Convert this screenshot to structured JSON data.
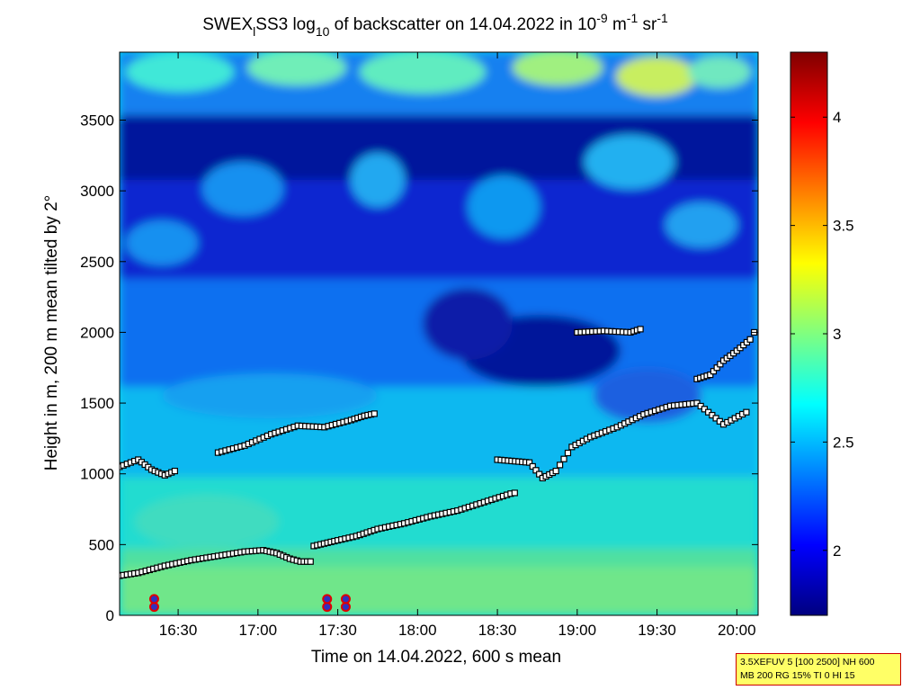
{
  "chart_data": {
    "type": "heatmap",
    "title": {
      "prefix": "SWEX",
      "sub_l": "l",
      "mid": "SS3 log",
      "sub_10": "10",
      "rest": " of backscatter on 14.04.2022 in 10",
      "sup_9": "-9",
      "unit_m": " m",
      "sup_1a": "-1",
      "unit_sr": " sr",
      "sup_1b": "-1"
    },
    "xlabel": "Time on 14.04.2022, 600 s mean",
    "ylabel": "Height in m, 200 m mean tilted by 2°",
    "x_ticks": [
      "16:30",
      "17:00",
      "17:30",
      "18:00",
      "18:30",
      "19:00",
      "19:30",
      "20:00"
    ],
    "x_tick_minutes": [
      990,
      1020,
      1050,
      1080,
      1110,
      1140,
      1170,
      1200
    ],
    "xlim_minutes": [
      968,
      1208
    ],
    "y_ticks": [
      0,
      500,
      1000,
      1500,
      2000,
      2500,
      3000,
      3500
    ],
    "ylim": [
      0,
      3980
    ],
    "colorbar": {
      "ticks": [
        "2",
        "2.5",
        "3",
        "3.5",
        "4"
      ],
      "tick_values": [
        2,
        2.5,
        3,
        3.5,
        4
      ],
      "range": [
        1.7,
        4.3
      ],
      "colormap": "jet"
    },
    "layers": [
      {
        "name": "lowest layer",
        "points": [
          [
            968,
            280
          ],
          [
            975,
            300
          ],
          [
            985,
            350
          ],
          [
            995,
            390
          ],
          [
            1005,
            420
          ],
          [
            1015,
            450
          ],
          [
            1022,
            460
          ],
          [
            1027,
            440
          ],
          [
            1032,
            400
          ],
          [
            1036,
            380
          ],
          [
            1041,
            380
          ]
        ]
      },
      {
        "name": "rising layer",
        "points": [
          [
            1041,
            490
          ],
          [
            1050,
            530
          ],
          [
            1057,
            560
          ],
          [
            1065,
            610
          ],
          [
            1075,
            650
          ],
          [
            1085,
            700
          ],
          [
            1095,
            740
          ],
          [
            1105,
            800
          ],
          [
            1115,
            860
          ],
          [
            1118,
            870
          ]
        ]
      },
      {
        "name": "mixing layer top",
        "points": [
          [
            968,
            1050
          ],
          [
            975,
            1100
          ],
          [
            980,
            1030
          ],
          [
            985,
            990
          ],
          [
            990,
            1030
          ]
        ]
      },
      {
        "name": "mixing layer top 2",
        "points": [
          [
            1005,
            1150
          ],
          [
            1015,
            1200
          ],
          [
            1025,
            1280
          ],
          [
            1035,
            1340
          ],
          [
            1045,
            1330
          ],
          [
            1055,
            1380
          ],
          [
            1060,
            1410
          ],
          [
            1065,
            1430
          ]
        ]
      },
      {
        "name": "elevated layer",
        "points": [
          [
            1110,
            1100
          ],
          [
            1122,
            1080
          ],
          [
            1127,
            970
          ],
          [
            1132,
            1020
          ],
          [
            1138,
            1190
          ],
          [
            1145,
            1260
          ],
          [
            1155,
            1330
          ],
          [
            1165,
            1420
          ],
          [
            1175,
            1480
          ],
          [
            1185,
            1500
          ],
          [
            1195,
            1350
          ],
          [
            1205,
            1450
          ]
        ]
      },
      {
        "name": "upper layer",
        "points": [
          [
            1140,
            2000
          ],
          [
            1150,
            2010
          ],
          [
            1160,
            2000
          ],
          [
            1165,
            2030
          ]
        ]
      },
      {
        "name": "upper rising layer",
        "points": [
          [
            1185,
            1670
          ],
          [
            1190,
            1700
          ],
          [
            1195,
            1800
          ],
          [
            1200,
            1870
          ],
          [
            1205,
            1950
          ],
          [
            1208,
            2050
          ]
        ]
      }
    ],
    "markers": [
      {
        "minute": 981,
        "height": 60
      },
      {
        "minute": 981,
        "height": 115
      },
      {
        "minute": 1046,
        "height": 60
      },
      {
        "minute": 1046,
        "height": 115
      },
      {
        "minute": 1053,
        "height": 60
      },
      {
        "minute": 1053,
        "height": 115
      }
    ]
  },
  "info_box": {
    "line1": "3.5XEFUV 5 [100 2500] NH 600",
    "line2": "MB 200 RG 15% TI 0 HI 15"
  }
}
